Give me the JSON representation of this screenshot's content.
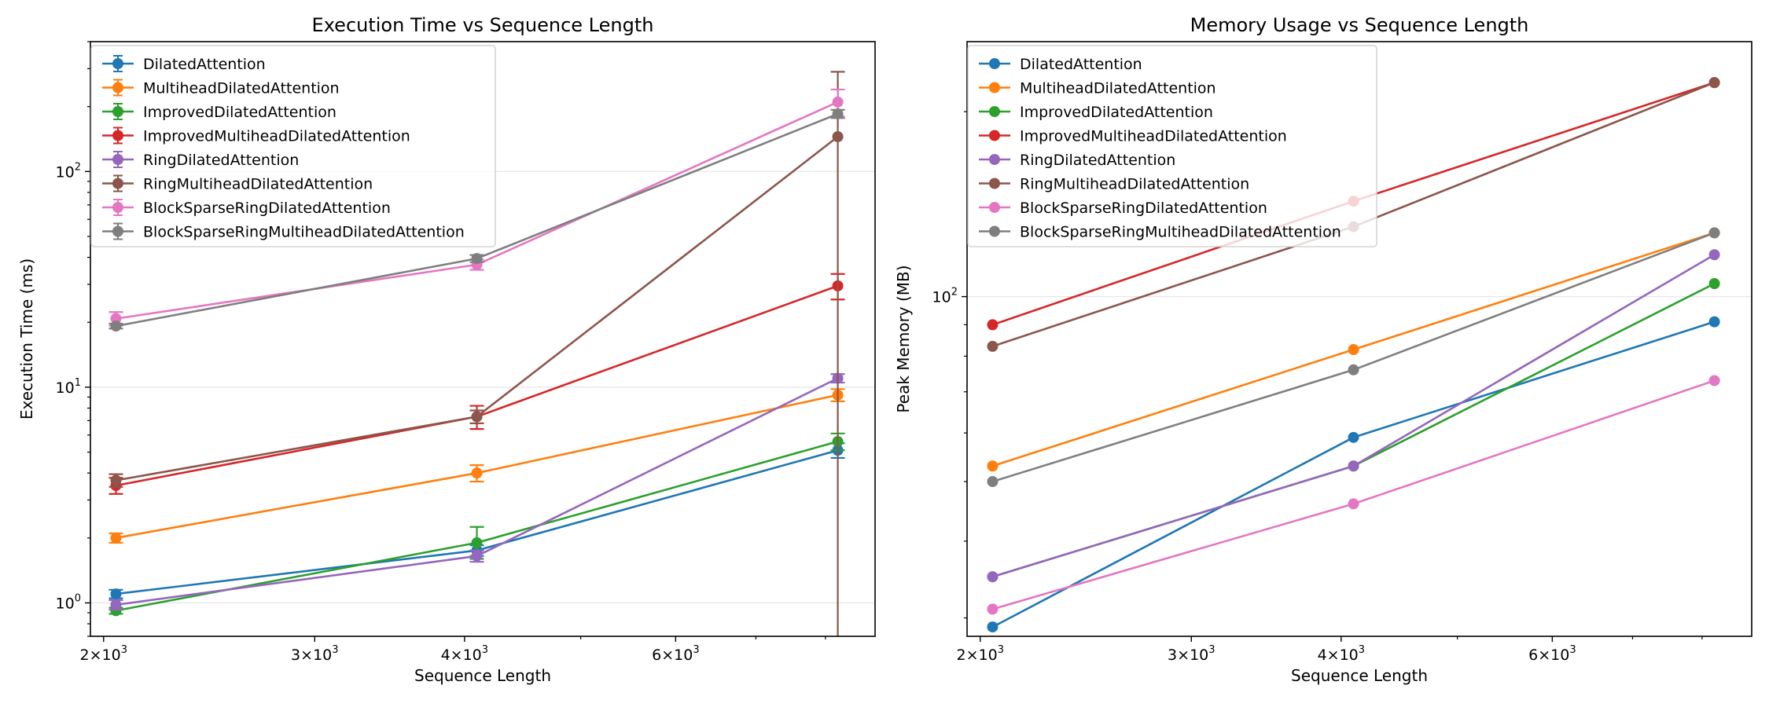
{
  "colors": [
    "#1f77b4",
    "#ff7f0e",
    "#2ca02c",
    "#d62728",
    "#9467bd",
    "#8c564b",
    "#e377c2",
    "#7f7f7f"
  ],
  "chart_data": [
    {
      "type": "line",
      "title": "Execution Time vs Sequence Length",
      "xlabel": "Sequence Length",
      "ylabel": "Execution Time (ms)",
      "xscale": "log",
      "yscale": "log",
      "xlim": [
        1950,
        8800
      ],
      "ylim": [
        0.7,
        400
      ],
      "x_ticks": [
        {
          "value": 2000,
          "base": "2",
          "exp": "3"
        },
        {
          "value": 3000,
          "base": "3",
          "exp": "3"
        },
        {
          "value": 4000,
          "base": "4",
          "exp": "3"
        },
        {
          "value": 6000,
          "base": "6",
          "exp": "3"
        }
      ],
      "y_ticks": [
        {
          "value": 1,
          "base": "10",
          "exp": "0"
        },
        {
          "value": 10,
          "base": "10",
          "exp": "1"
        },
        {
          "value": 100,
          "base": "10",
          "exp": "2"
        }
      ],
      "grid": "horizontal",
      "legend": "upper-left",
      "x": [
        2048,
        4096,
        8192
      ],
      "series": [
        {
          "name": "DilatedAttention",
          "values": [
            1.1,
            1.75,
            5.1
          ],
          "err_low": [
            0.05,
            0.1,
            0.4
          ],
          "err_high": [
            0.05,
            0.1,
            0.4
          ]
        },
        {
          "name": "MultiheadDilatedAttention",
          "values": [
            2.0,
            4.0,
            9.2
          ],
          "err_low": [
            0.1,
            0.35,
            0.6
          ],
          "err_high": [
            0.1,
            0.35,
            0.6
          ]
        },
        {
          "name": "ImprovedDilatedAttention",
          "values": [
            0.92,
            1.9,
            5.6
          ],
          "err_low": [
            0.03,
            0.3,
            0.5
          ],
          "err_high": [
            0.03,
            0.35,
            0.5
          ]
        },
        {
          "name": "ImprovedMultiheadDilatedAttention",
          "values": [
            3.5,
            7.3,
            29.5
          ],
          "err_low": [
            0.3,
            0.9,
            4.0
          ],
          "err_high": [
            0.3,
            0.9,
            4.0
          ]
        },
        {
          "name": "RingDilatedAttention",
          "values": [
            0.98,
            1.65,
            11.0
          ],
          "err_low": [
            0.05,
            0.1,
            0.5
          ],
          "err_high": [
            0.05,
            0.1,
            0.5
          ]
        },
        {
          "name": "RingMultiheadDilatedAttention",
          "values": [
            3.7,
            7.3,
            145
          ],
          "err_low": [
            0.25,
            0.5,
            145
          ],
          "err_high": [
            0.25,
            0.5,
            145
          ]
        },
        {
          "name": "BlockSparseRingDilatedAttention",
          "values": [
            20.8,
            37,
            210
          ],
          "err_low": [
            1.5,
            2.0,
            30
          ],
          "err_high": [
            1.5,
            2.0,
            30
          ]
        },
        {
          "name": "BlockSparseRingMultiheadDilatedAttention",
          "values": [
            19.2,
            39.5,
            185
          ],
          "err_low": [
            0.5,
            1.5,
            8
          ],
          "err_high": [
            0.5,
            1.5,
            8
          ]
        }
      ]
    },
    {
      "type": "line",
      "title": "Memory Usage vs Sequence Length",
      "xlabel": "Sequence Length",
      "ylabel": "Peak Memory (MB)",
      "xscale": "log",
      "yscale": "log",
      "xlim": [
        1950,
        8800
      ],
      "ylim": [
        28,
        260
      ],
      "x_ticks": [
        {
          "value": 2000,
          "base": "2",
          "exp": "3"
        },
        {
          "value": 3000,
          "base": "3",
          "exp": "3"
        },
        {
          "value": 4000,
          "base": "4",
          "exp": "3"
        },
        {
          "value": 6000,
          "base": "6",
          "exp": "3"
        }
      ],
      "y_ticks": [
        {
          "value": 100,
          "base": "10",
          "exp": "2"
        }
      ],
      "grid": "horizontal",
      "legend": "upper-left",
      "x": [
        2048,
        4096,
        8192
      ],
      "series": [
        {
          "name": "DilatedAttention",
          "values": [
            29,
            59,
            91
          ]
        },
        {
          "name": "MultiheadDilatedAttention",
          "values": [
            53,
            82,
            127
          ]
        },
        {
          "name": "ImprovedDilatedAttention",
          "values": [
            35,
            53,
            105
          ]
        },
        {
          "name": "ImprovedMultiheadDilatedAttention",
          "values": [
            90,
            143,
            223
          ]
        },
        {
          "name": "RingDilatedAttention",
          "values": [
            35,
            53,
            117
          ]
        },
        {
          "name": "RingMultiheadDilatedAttention",
          "values": [
            83,
            130,
            223
          ]
        },
        {
          "name": "BlockSparseRingDilatedAttention",
          "values": [
            31,
            46,
            73
          ]
        },
        {
          "name": "BlockSparseRingMultiheadDilatedAttention",
          "values": [
            50,
            76,
            127
          ]
        }
      ]
    }
  ]
}
